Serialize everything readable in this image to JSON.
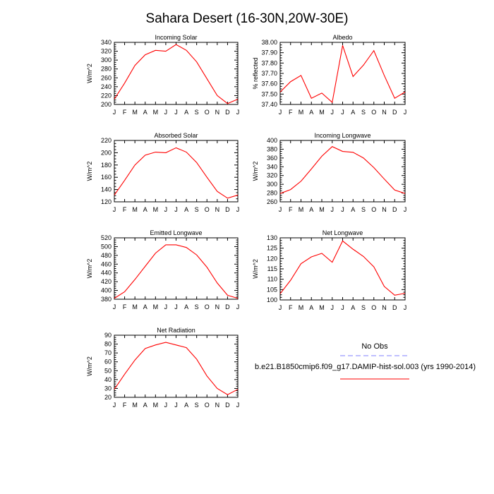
{
  "page": {
    "title": "Sahara Desert (16-30N,20W-30E)"
  },
  "colors": {
    "model_line": "#ff0000",
    "obs_line": "#8080ff",
    "axis": "#000000"
  },
  "legend": {
    "obs_label": "No Obs",
    "model_label": "b.e21.B1850cmip6.f09_g17.DAMIP-hist-sol.003 (yrs 1990-2014)"
  },
  "chart_data": [
    {
      "type": "line",
      "title": "Incoming Solar",
      "ylabel": "W/m^2",
      "x": [
        "J",
        "F",
        "M",
        "A",
        "M",
        "J",
        "J",
        "A",
        "S",
        "O",
        "N",
        "D",
        "J"
      ],
      "ylim": [
        200,
        340
      ],
      "yticks": [
        200,
        220,
        240,
        260,
        280,
        300,
        320,
        340
      ],
      "ytick_labels": [
        "200",
        "220",
        "240",
        "260",
        "280",
        "300",
        "320",
        "340"
      ],
      "series": [
        {
          "values": [
            212,
            248,
            288,
            312,
            322,
            320,
            335,
            322,
            296,
            258,
            220,
            202,
            212
          ]
        }
      ]
    },
    {
      "type": "line",
      "title": "Albedo",
      "ylabel": "% reflected",
      "x": [
        "J",
        "F",
        "M",
        "A",
        "M",
        "J",
        "J",
        "A",
        "S",
        "O",
        "N",
        "D",
        "J"
      ],
      "ylim": [
        37.4,
        38.0
      ],
      "yticks": [
        37.4,
        37.5,
        37.6,
        37.7,
        37.8,
        37.9,
        38.0
      ],
      "ytick_labels": [
        "37.40",
        "37.50",
        "37.60",
        "37.70",
        "37.80",
        "37.90",
        "38.00"
      ],
      "series": [
        {
          "values": [
            37.52,
            37.62,
            37.68,
            37.46,
            37.51,
            37.42,
            37.97,
            37.67,
            37.78,
            37.92,
            37.68,
            37.46,
            37.52
          ]
        }
      ]
    },
    {
      "type": "line",
      "title": "Absorbed Solar",
      "ylabel": "W/m^2",
      "x": [
        "J",
        "F",
        "M",
        "A",
        "M",
        "J",
        "J",
        "A",
        "S",
        "O",
        "N",
        "D",
        "J"
      ],
      "ylim": [
        120,
        220
      ],
      "yticks": [
        120,
        140,
        160,
        180,
        200,
        220
      ],
      "ytick_labels": [
        "120",
        "140",
        "160",
        "180",
        "200",
        "220"
      ],
      "series": [
        {
          "values": [
            131,
            155,
            180,
            196,
            201,
            200,
            208,
            201,
            184,
            160,
            137,
            126,
            131
          ]
        }
      ]
    },
    {
      "type": "line",
      "title": "Incoming Longwave",
      "ylabel": "W/m^2",
      "x": [
        "J",
        "F",
        "M",
        "A",
        "M",
        "J",
        "J",
        "A",
        "S",
        "O",
        "N",
        "D",
        "J"
      ],
      "ylim": [
        260,
        400
      ],
      "yticks": [
        260,
        280,
        300,
        320,
        340,
        360,
        380,
        400
      ],
      "ytick_labels": [
        "260",
        "280",
        "300",
        "320",
        "340",
        "360",
        "380",
        "400"
      ],
      "series": [
        {
          "values": [
            279,
            288,
            307,
            335,
            364,
            386,
            375,
            373,
            360,
            338,
            312,
            287,
            279
          ]
        }
      ]
    },
    {
      "type": "line",
      "title": "Emitted Longwave",
      "ylabel": "W/m^2",
      "x": [
        "J",
        "F",
        "M",
        "A",
        "M",
        "J",
        "J",
        "A",
        "S",
        "O",
        "N",
        "D",
        "J"
      ],
      "ylim": [
        380,
        520
      ],
      "yticks": [
        380,
        400,
        420,
        440,
        460,
        480,
        500,
        520
      ],
      "ytick_labels": [
        "380",
        "400",
        "420",
        "440",
        "460",
        "480",
        "500",
        "520"
      ],
      "series": [
        {
          "values": [
            382,
            397,
            425,
            455,
            485,
            504,
            504,
            498,
            481,
            453,
            417,
            389,
            382
          ]
        }
      ]
    },
    {
      "type": "line",
      "title": "Net Longwave",
      "ylabel": "W/m^2",
      "x": [
        "J",
        "F",
        "M",
        "A",
        "M",
        "J",
        "J",
        "A",
        "S",
        "O",
        "N",
        "D",
        "J"
      ],
      "ylim": [
        100,
        130
      ],
      "yticks": [
        100,
        105,
        110,
        115,
        120,
        125,
        130
      ],
      "ytick_labels": [
        "100",
        "105",
        "110",
        "115",
        "120",
        "125",
        "130"
      ],
      "series": [
        {
          "values": [
            103,
            109.5,
            117.5,
            120.8,
            122.5,
            118.2,
            128.5,
            124.5,
            121,
            116,
            106.5,
            102.3,
            103.2
          ]
        }
      ]
    },
    {
      "type": "line",
      "title": "Net Radiation",
      "ylabel": "W/m^2",
      "x": [
        "J",
        "F",
        "M",
        "A",
        "M",
        "J",
        "J",
        "A",
        "S",
        "O",
        "N",
        "D",
        "J"
      ],
      "ylim": [
        20,
        90
      ],
      "yticks": [
        20,
        30,
        40,
        50,
        60,
        70,
        80,
        90
      ],
      "ytick_labels": [
        "20",
        "30",
        "40",
        "50",
        "60",
        "70",
        "80",
        "90"
      ],
      "series": [
        {
          "values": [
            29,
            46,
            62,
            75,
            79,
            82,
            79,
            76,
            63,
            44,
            30,
            23,
            29
          ]
        }
      ]
    }
  ]
}
